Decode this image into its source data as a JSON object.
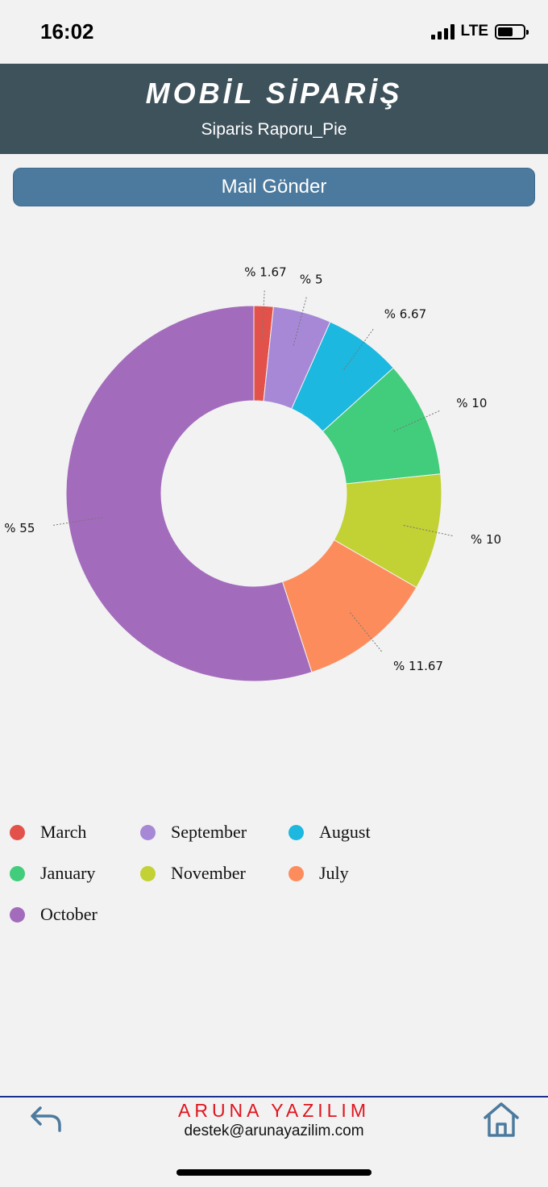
{
  "status_bar": {
    "time": "16:02",
    "network": "LTE",
    "signal_bars": 4,
    "battery_level": 0.6
  },
  "header": {
    "title": "MOBİL SİPARİŞ",
    "subtitle": "Siparis Raporu_Pie"
  },
  "actions": {
    "mail_label": "Mail Gönder"
  },
  "chart_data": {
    "type": "pie",
    "style": "donut",
    "categories": [
      "March",
      "September",
      "August",
      "January",
      "November",
      "July",
      "October"
    ],
    "values": [
      1.67,
      5,
      6.67,
      10,
      10,
      11.67,
      55
    ],
    "labels": [
      "% 1.67",
      "% 5",
      "% 6.67",
      "% 10",
      "% 10",
      "% 11.67",
      "% 55"
    ],
    "colors": [
      "#e3524a",
      "#a688d6",
      "#1cb8df",
      "#41cd7b",
      "#c2d134",
      "#fd8c5c",
      "#a36bbc"
    ],
    "legend": "bottom-left"
  },
  "footer": {
    "brand": "ARUNA YAZILIM",
    "email": "destek@arunayazilim.com",
    "back_icon": "back-arrow-icon",
    "home_icon": "home-icon"
  }
}
